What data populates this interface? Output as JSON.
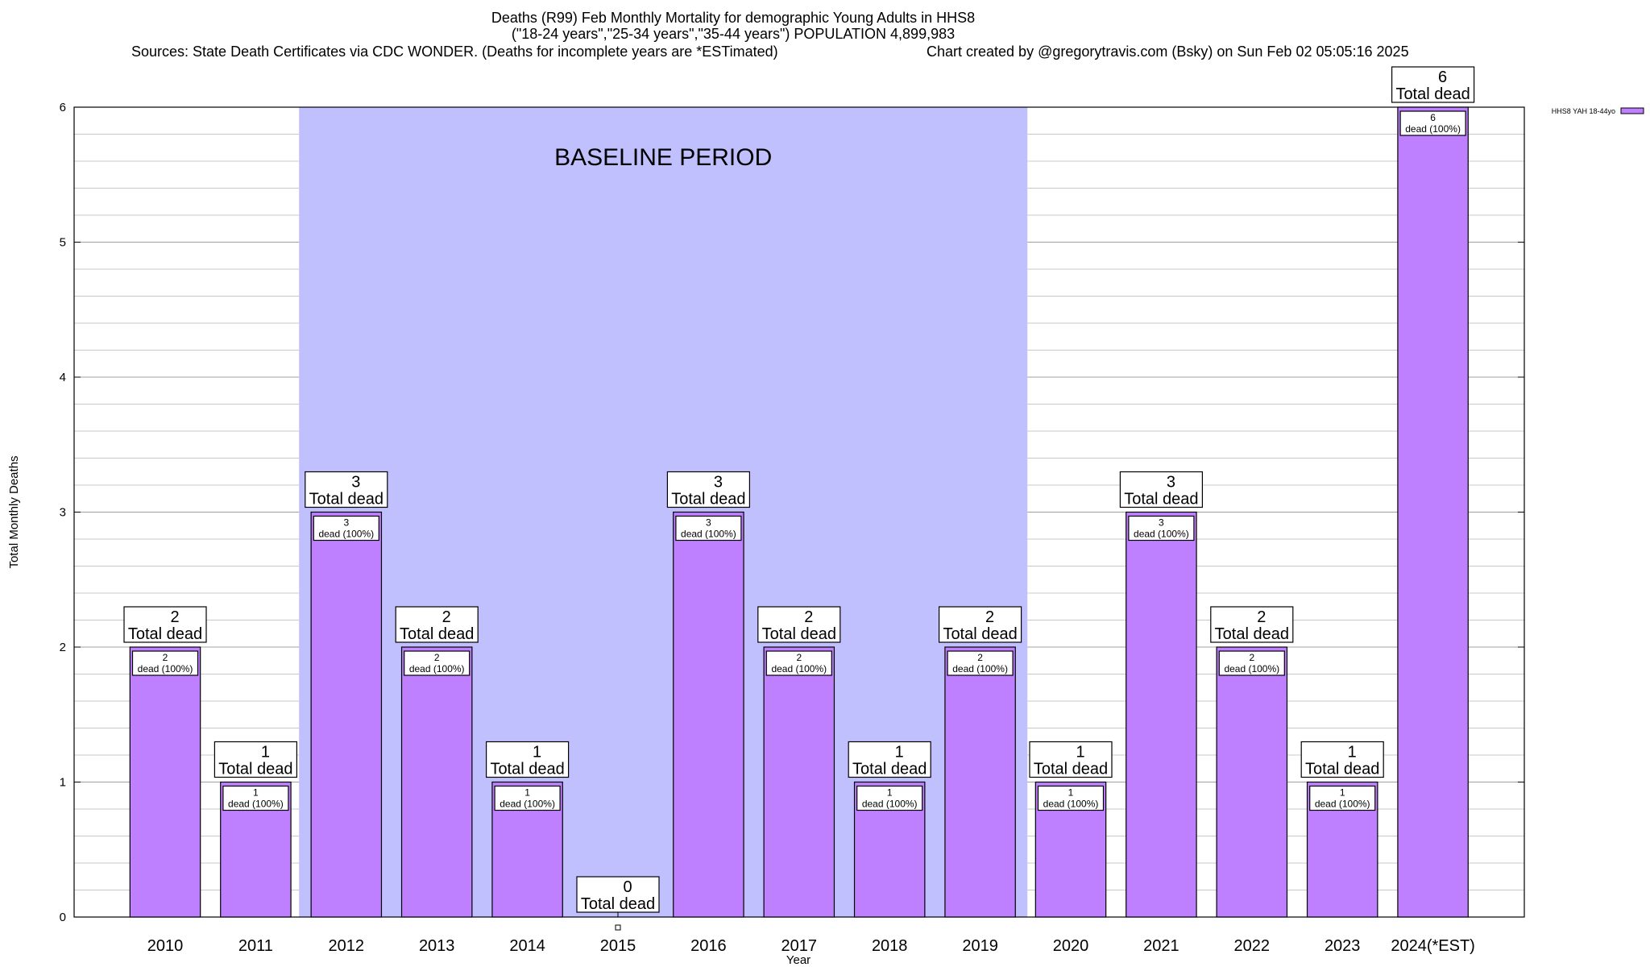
{
  "chart_data": {
    "type": "bar",
    "title": "Deaths (R99) Feb Monthly Mortality for demographic Young Adults in HHS8",
    "subtitle": "(\"18-24 years\",\"25-34 years\",\"35-44 years\") POPULATION 4,899,983",
    "source": "Sources: State Death Certificates via CDC WONDER. (Deaths for incomplete years are *ESTimated)",
    "credit": "Chart created by @gregorytravis.com (Bsky) on Sun Feb 02 05:05:16 2025",
    "xlabel": "Year",
    "ylabel": "Total Monthly Deaths",
    "ylim": [
      0,
      6
    ],
    "yticks": [
      0,
      1,
      2,
      3,
      4,
      5,
      6
    ],
    "categories": [
      "2010",
      "2011",
      "2012",
      "2013",
      "2014",
      "2015",
      "2016",
      "2017",
      "2018",
      "2019",
      "2020",
      "2021",
      "2022",
      "2023",
      "2024(*EST)"
    ],
    "series": [
      {
        "name": "HHS8 YAH 18-44yo",
        "color": "#bf80ff",
        "values": [
          2,
          1,
          3,
          2,
          1,
          0,
          3,
          2,
          1,
          2,
          1,
          3,
          2,
          1,
          6
        ]
      }
    ],
    "total_label_text": "Total dead",
    "inner_label_text": "dead (100%)",
    "baseline": {
      "label": "BASELINE PERIOD",
      "from": "2012",
      "to": "2019",
      "color": "#c0c0ff"
    },
    "grid": true,
    "legend_position": "top-right"
  }
}
